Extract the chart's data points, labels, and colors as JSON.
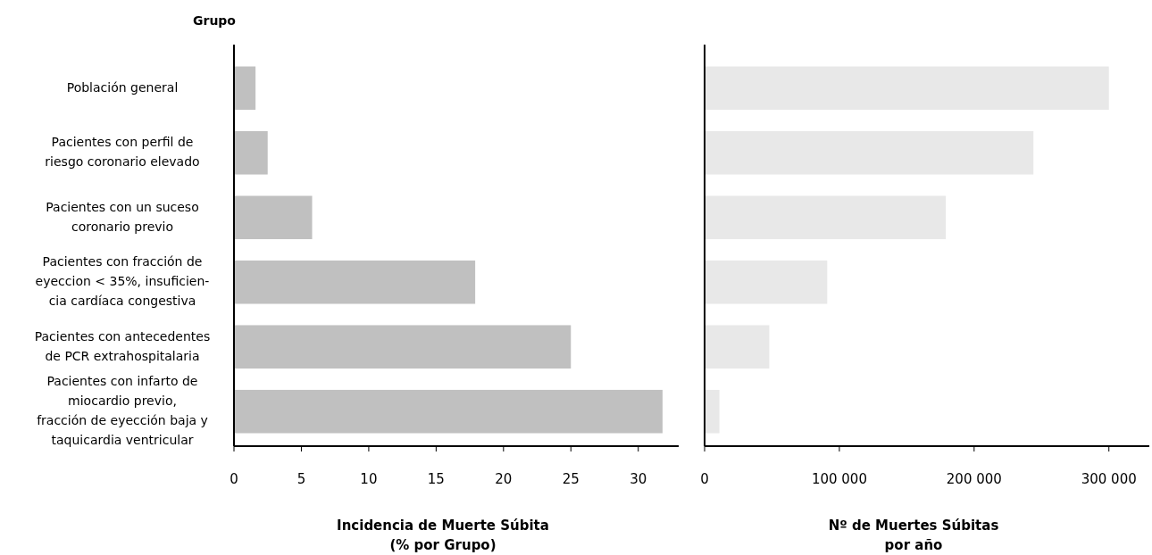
{
  "chart_data": [
    {
      "type": "bar",
      "orientation": "horizontal",
      "ylabel": "Grupo",
      "xlabel": "Incidencia de Muerte Súbita\n(% por Grupo)",
      "categories": [
        "Población general",
        "Pacientes con perfil de\nriesgo coronario elevado",
        "Pacientes con un suceso\ncoronario previo",
        "Pacientes con fracción de\neyeccion < 35%, insuficien-\ncia cardíaca congestiva",
        "Pacientes con antecedentes\nde PCR extrahospitalaria",
        "Pacientes con infarto de\nmiocardio previo,\nfracción de eyección baja y\ntaquicardia ventricular"
      ],
      "values": [
        1.6,
        2.5,
        5.8,
        17.9,
        25.0,
        31.8
      ],
      "color": "#c0c0c0",
      "xlim": [
        0,
        33
      ],
      "xticks": [
        0,
        5,
        10,
        15,
        20,
        25,
        30
      ]
    },
    {
      "type": "bar",
      "orientation": "horizontal",
      "xlabel": "Nº de Muertes Súbitas\npor año",
      "categories": [
        null,
        null,
        null,
        null,
        null,
        null
      ],
      "values": [
        300000,
        244000,
        179000,
        91000,
        48000,
        11000
      ],
      "color": "#e8e8e8",
      "xlim": [
        0,
        330000
      ],
      "xticks": [
        0,
        {
          "value": 100000,
          "label": "100 000"
        },
        {
          "value": 200000,
          "label": "200 000"
        },
        {
          "value": 300000,
          "label": "300 000"
        }
      ]
    }
  ]
}
